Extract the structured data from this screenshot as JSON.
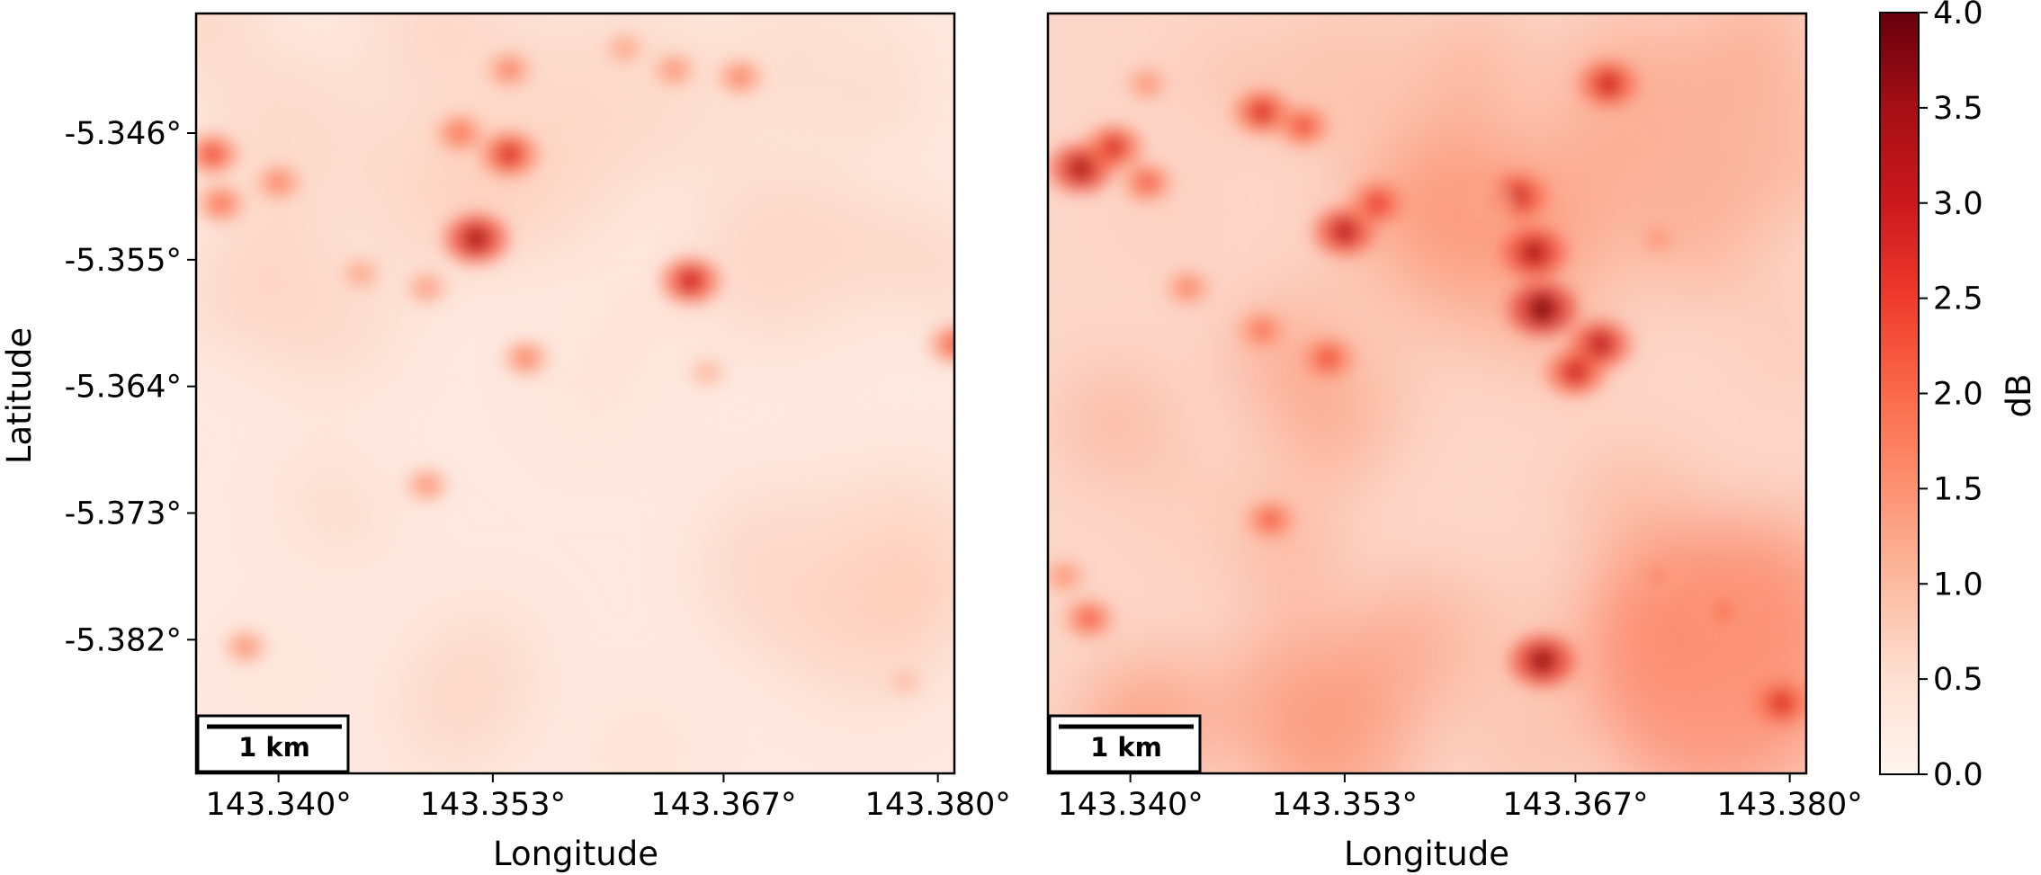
{
  "chart_data": [
    {
      "type": "heatmap",
      "panel": "left",
      "xlabel": "Longitude",
      "ylabel": "Latitude",
      "xticks": [
        "143.340°",
        "143.353°",
        "143.367°",
        "143.380°"
      ],
      "yticks": [
        "-5.346°",
        "-5.355°",
        "-5.364°",
        "-5.373°",
        "-5.382°"
      ],
      "xlim": [
        143.335,
        143.381
      ],
      "ylim": [
        -5.3915,
        -5.3375
      ],
      "colormap": "Reds",
      "value_range": [
        0.0,
        4.0
      ],
      "scalebar_label": "1 km",
      "hotspots": [
        {
          "lon": 143.336,
          "lat": -5.3475,
          "value": 2.4
        },
        {
          "lon": 143.3365,
          "lat": -5.351,
          "value": 2.0
        },
        {
          "lon": 143.34,
          "lat": -5.3495,
          "value": 1.8
        },
        {
          "lon": 143.352,
          "lat": -5.3535,
          "value": 3.4
        },
        {
          "lon": 143.354,
          "lat": -5.3475,
          "value": 2.8
        },
        {
          "lon": 143.351,
          "lat": -5.346,
          "value": 2.0
        },
        {
          "lon": 143.354,
          "lat": -5.3415,
          "value": 1.8
        },
        {
          "lon": 143.365,
          "lat": -5.3565,
          "value": 3.0
        },
        {
          "lon": 143.364,
          "lat": -5.3415,
          "value": 1.6
        },
        {
          "lon": 143.361,
          "lat": -5.34,
          "value": 1.4
        },
        {
          "lon": 143.368,
          "lat": -5.342,
          "value": 1.8
        },
        {
          "lon": 143.355,
          "lat": -5.362,
          "value": 1.8
        },
        {
          "lon": 143.349,
          "lat": -5.357,
          "value": 1.5
        },
        {
          "lon": 143.349,
          "lat": -5.371,
          "value": 1.6
        },
        {
          "lon": 143.345,
          "lat": -5.356,
          "value": 1.4
        },
        {
          "lon": 143.381,
          "lat": -5.361,
          "value": 2.2
        },
        {
          "lon": 143.338,
          "lat": -5.3825,
          "value": 1.6
        },
        {
          "lon": 143.366,
          "lat": -5.363,
          "value": 1.2
        },
        {
          "lon": 143.378,
          "lat": -5.385,
          "value": 1.1
        }
      ]
    },
    {
      "type": "heatmap",
      "panel": "right",
      "xlabel": "Longitude",
      "ylabel": "",
      "xticks": [
        "143.340°",
        "143.353°",
        "143.367°",
        "143.380°"
      ],
      "yticks": [],
      "xlim": [
        143.335,
        143.381
      ],
      "ylim": [
        -5.3915,
        -5.3375
      ],
      "colormap": "Reds",
      "value_range": [
        0.0,
        4.0
      ],
      "scalebar_label": "1 km",
      "hotspots": [
        {
          "lon": 143.337,
          "lat": -5.3485,
          "value": 3.4
        },
        {
          "lon": 143.339,
          "lat": -5.347,
          "value": 2.8
        },
        {
          "lon": 143.341,
          "lat": -5.3495,
          "value": 2.2
        },
        {
          "lon": 143.348,
          "lat": -5.3445,
          "value": 2.8
        },
        {
          "lon": 143.3505,
          "lat": -5.3455,
          "value": 2.4
        },
        {
          "lon": 143.353,
          "lat": -5.353,
          "value": 3.2
        },
        {
          "lon": 143.355,
          "lat": -5.351,
          "value": 2.6
        },
        {
          "lon": 143.3645,
          "lat": -5.3545,
          "value": 3.4
        },
        {
          "lon": 143.365,
          "lat": -5.3585,
          "value": 3.8
        },
        {
          "lon": 143.3635,
          "lat": -5.3505,
          "value": 3.0
        },
        {
          "lon": 143.369,
          "lat": -5.3425,
          "value": 3.0
        },
        {
          "lon": 143.3685,
          "lat": -5.361,
          "value": 3.2
        },
        {
          "lon": 143.367,
          "lat": -5.363,
          "value": 3.0
        },
        {
          "lon": 143.352,
          "lat": -5.362,
          "value": 2.4
        },
        {
          "lon": 143.348,
          "lat": -5.36,
          "value": 2.0
        },
        {
          "lon": 143.3435,
          "lat": -5.357,
          "value": 1.8
        },
        {
          "lon": 143.3485,
          "lat": -5.3735,
          "value": 2.2
        },
        {
          "lon": 143.365,
          "lat": -5.3835,
          "value": 3.6
        },
        {
          "lon": 143.3795,
          "lat": -5.3865,
          "value": 2.8
        },
        {
          "lon": 143.376,
          "lat": -5.38,
          "value": 2.0
        },
        {
          "lon": 143.372,
          "lat": -5.3775,
          "value": 1.8
        },
        {
          "lon": 143.3375,
          "lat": -5.3805,
          "value": 2.2
        },
        {
          "lon": 143.336,
          "lat": -5.3775,
          "value": 1.6
        },
        {
          "lon": 143.362,
          "lat": -5.351,
          "value": 1.6
        },
        {
          "lon": 143.372,
          "lat": -5.3535,
          "value": 1.6
        },
        {
          "lon": 143.341,
          "lat": -5.3425,
          "value": 1.6
        }
      ]
    }
  ],
  "colorbar": {
    "label": "dB",
    "min": 0.0,
    "max": 4.0,
    "ticks": [
      "0.0",
      "0.5",
      "1.0",
      "1.5",
      "2.0",
      "2.5",
      "3.0",
      "3.5",
      "4.0"
    ],
    "colors": [
      "#fff5f0",
      "#fee0d2",
      "#fcbba1",
      "#fc9272",
      "#fb6a4a",
      "#ef3b2c",
      "#cb181d",
      "#a50f15",
      "#67000d"
    ]
  }
}
